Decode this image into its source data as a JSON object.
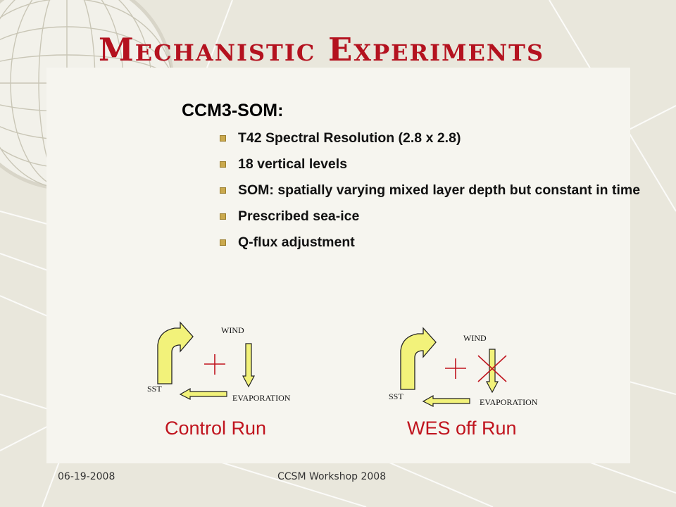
{
  "slide": {
    "title": "Mechanistic Experiments",
    "subtitle": "CCM3-SOM:",
    "bullets": [
      "T42 Spectral Resolution (2.8 x 2.8)",
      "18 vertical levels",
      "SOM: spatially varying mixed layer depth but constant in time",
      "Prescribed sea-ice",
      "Q-flux adjustment"
    ],
    "colors": {
      "title": "#b4121f",
      "arrow_fill": "#f2f27a",
      "plus": "#c0141e",
      "bullet": "#caa94e"
    }
  },
  "diagrams": {
    "control": {
      "wind": "WIND",
      "evaporation": "EVAPORATION",
      "sst": "SST",
      "caption": "Control Run"
    },
    "wes_off": {
      "wind": "WIND",
      "evaporation": "EVAPORATION",
      "sst": "SST",
      "caption": "WES off Run"
    }
  },
  "footer": {
    "date": "06-19-2008",
    "event": "CCSM Workshop 2008"
  }
}
